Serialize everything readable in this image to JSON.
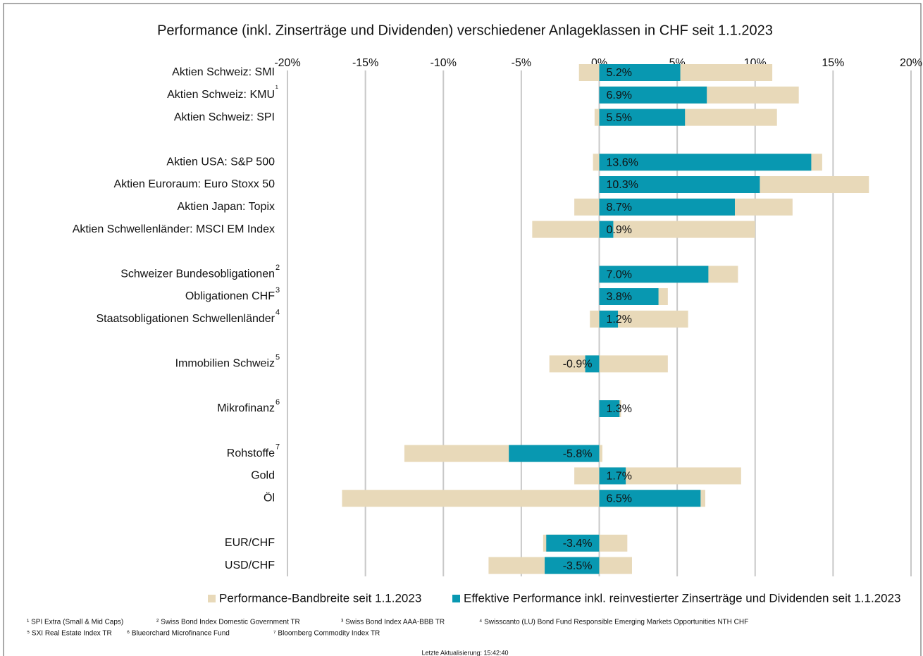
{
  "chart_data": {
    "type": "range_bar",
    "title": "Performance (inkl. Zinserträge und Dividenden) verschiedener Anlageklassen in CHF seit 1.1.2023",
    "categories": [
      "Aktien Schweiz: SMI",
      "Aktien Schweiz: KMU",
      "Aktien Schweiz: SPI",
      null,
      "Aktien USA: S&P 500",
      "Aktien Euroraum: Euro Stoxx 50",
      "Aktien Japan: Topix",
      "Aktien Schwellenländer: MSCI EM Index",
      null,
      "Schweizer Bundesobligationen",
      "Obligationen CHF",
      "Staatsobligationen Schwellenländer",
      null,
      "Immobilien Schweiz",
      null,
      "Mikrofinanz",
      null,
      "Rohstoffe",
      "Gold",
      "Öl",
      null,
      "EUR/CHF",
      "USD/CHF"
    ],
    "category_notes": [
      null,
      "¹",
      null,
      null,
      null,
      null,
      null,
      null,
      null,
      "2",
      "3",
      "4",
      null,
      "5",
      null,
      "6",
      null,
      "7",
      null,
      null,
      null,
      null,
      null
    ],
    "series": [
      {
        "name": "Performance-Bandbreite seit 1.1.2023",
        "color": "#e8d9b9",
        "low": [
          -1.3,
          0,
          -0.3,
          null,
          -0.4,
          0,
          -1.6,
          -4.3,
          null,
          0,
          0,
          -0.6,
          null,
          -3.2,
          null,
          0,
          null,
          -12.5,
          -1.6,
          -16.5,
          null,
          -3.6,
          -7.1
        ],
        "high": [
          11.1,
          12.8,
          11.4,
          null,
          14.3,
          17.3,
          12.4,
          10.0,
          null,
          8.9,
          4.4,
          5.7,
          null,
          4.4,
          null,
          1.4,
          null,
          0.2,
          9.1,
          6.8,
          null,
          1.8,
          2.1
        ]
      },
      {
        "name": "Effektive Performance inkl. reinvestierter Zinserträge und Dividenden seit 1.1.2023",
        "color": "#0898b1",
        "values": [
          5.2,
          6.9,
          5.5,
          null,
          13.6,
          10.3,
          8.7,
          0.9,
          null,
          7.0,
          3.8,
          1.2,
          null,
          -0.9,
          null,
          1.3,
          null,
          -5.8,
          1.7,
          6.5,
          null,
          -3.4,
          -3.5
        ],
        "value_labels": [
          "5.2%",
          "6.9%",
          "5.5%",
          null,
          "13.6%",
          "10.3%",
          "8.7%",
          "0.9%",
          null,
          "7.0%",
          "3.8%",
          "1.2%",
          null,
          "-0.9%",
          null,
          "1.3%",
          null,
          "-5.8%",
          "1.7%",
          "6.5%",
          null,
          "-3.4%",
          "-3.5%"
        ]
      }
    ],
    "xlim": [
      -20,
      20
    ],
    "xticks": [
      {
        "value": -20,
        "label": "-20%"
      },
      {
        "value": -15,
        "label": "-15%"
      },
      {
        "value": -10,
        "label": "-10%"
      },
      {
        "value": -5,
        "label": "-5%"
      },
      {
        "value": 0,
        "label": "0%"
      },
      {
        "value": 5,
        "label": "5%"
      },
      {
        "value": 10,
        "label": "10%"
      },
      {
        "value": 15,
        "label": "15%"
      },
      {
        "value": 20,
        "label": "20%"
      }
    ],
    "grid": true,
    "legend": "bottom",
    "footnotes": [
      [
        "¹ SPI Extra (Small & Mid Caps)",
        "² Swiss Bond Index Domestic Government TR",
        "³ Swiss Bond Index AAA-BBB TR",
        "⁴ Swisscanto (LU) Bond Fund Responsible Emerging Markets Opportunities NTH CHF"
      ],
      [
        "⁵ SXI Real Estate Index TR",
        "⁶ Blueorchard Microfinance Fund",
        "⁷ Bloomberg Commodity Index TR"
      ]
    ],
    "update_note": "Letzte Aktualisierung: 15:42:40"
  }
}
